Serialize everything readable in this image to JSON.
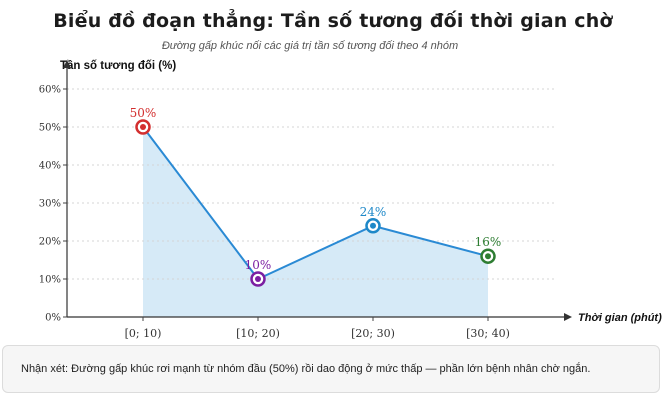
{
  "header": {
    "title": "Biểu đồ đoạn thẳng: Tần số tương đối thời gian chờ",
    "subtitle": "Đường gấp khúc nối các giá trị tần số tương đối theo 4 nhóm"
  },
  "note": "Nhận xét: Đường gấp khúc rơi mạnh từ nhóm đầu (50%) rồi dao động ở mức thấp — phần lớn bệnh nhân chờ ngắn.",
  "chart_data": {
    "type": "line",
    "title": "Biểu đồ đoạn thẳng: Tần số tương đối thời gian chờ",
    "subtitle": "Đường gấp khúc nối các giá trị tần số tương đối theo 4 nhóm",
    "xlabel": "Thời gian (phút)",
    "ylabel": "Tần số tương đối (%)",
    "categories": [
      "[0; 10)",
      "[10; 20)",
      "[20; 30)",
      "[30; 40)"
    ],
    "values": [
      50,
      10,
      24,
      16
    ],
    "data_labels": [
      "50%",
      "10%",
      "24%",
      "16%"
    ],
    "point_colors": [
      "#d32f2f",
      "#7b1fa2",
      "#1e88c8",
      "#2e7d32"
    ],
    "line_color": "#2a8ad4",
    "fill_color": "#d6eaf7",
    "ylim": [
      0,
      60
    ],
    "yticks": [
      0,
      10,
      20,
      30,
      40,
      50,
      60
    ],
    "ytick_labels": [
      "0%",
      "10%",
      "20%",
      "30%",
      "40%",
      "50%",
      "60%"
    ],
    "grid": true,
    "area_fill": true
  }
}
